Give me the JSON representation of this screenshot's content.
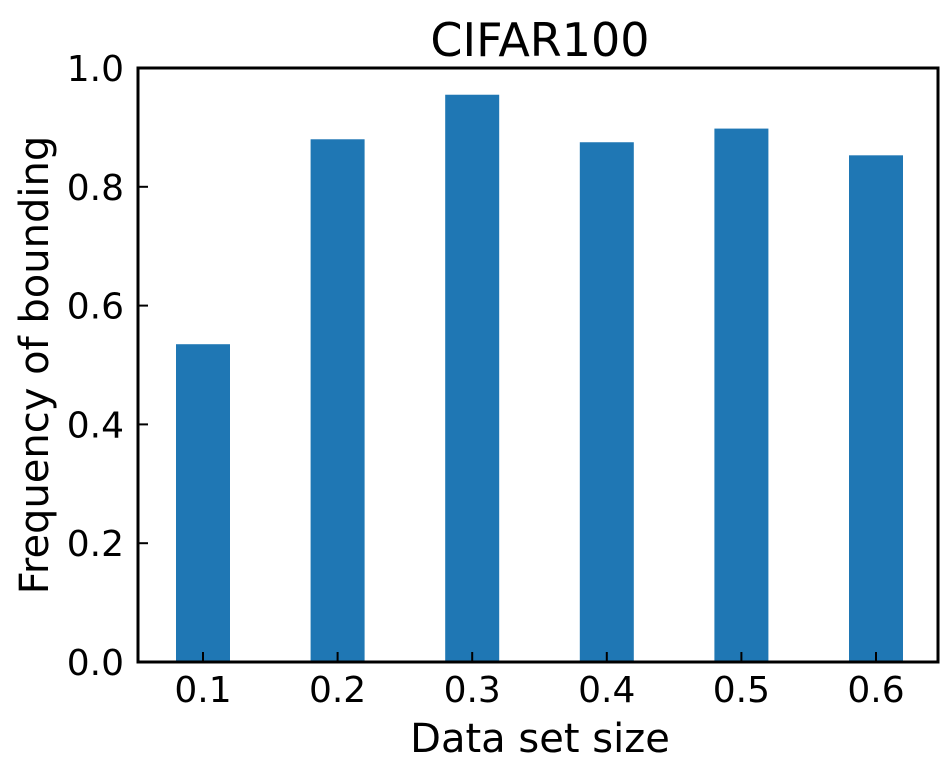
{
  "chart_data": {
    "type": "bar",
    "title": "CIFAR100",
    "xlabel": "Data set size",
    "ylabel": "Frequency of bounding",
    "categories": [
      "0.1",
      "0.2",
      "0.3",
      "0.4",
      "0.5",
      "0.6"
    ],
    "values": [
      0.535,
      0.88,
      0.955,
      0.875,
      0.898,
      0.853
    ],
    "ylim": [
      0,
      1.0
    ],
    "yticks": [
      "0.0",
      "0.2",
      "0.4",
      "0.6",
      "0.8",
      "1.0"
    ],
    "grid": false,
    "bar_color": "#1f77b4"
  }
}
